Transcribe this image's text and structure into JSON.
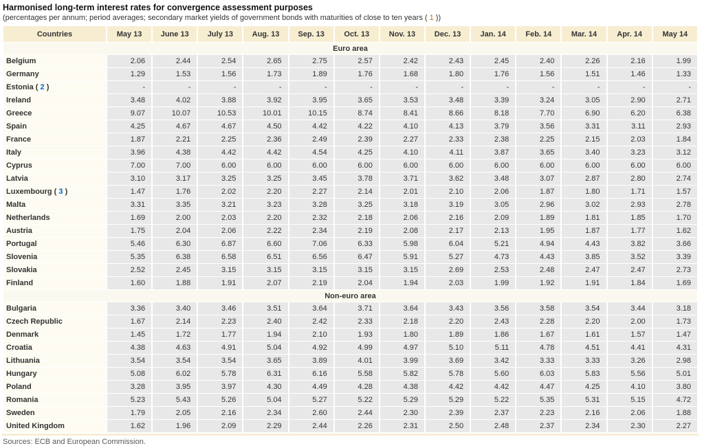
{
  "title": "Harmonised long-term interest rates for convergence assessment purposes",
  "subtitle": {
    "prefix": "(percentages per annum; period averages; secondary market yields of government bonds with maturities of close to ten years ( ",
    "footnote": "1",
    "suffix": " ))"
  },
  "colors": {
    "header_bg": "#f7eed2",
    "value_cell_bg": "#e8e8e8",
    "country_cell_bg": "#fdfbf2",
    "footnote_link_blue": "#0066cc",
    "footnote_orange": "#cc6600"
  },
  "columns": [
    "Countries",
    "May 13",
    "June 13",
    "July 13",
    "Aug. 13",
    "Sep. 13",
    "Oct. 13",
    "Nov. 13",
    "Dec. 13",
    "Jan. 14",
    "Feb. 14",
    "Mar. 14",
    "Apr. 14",
    "May 14"
  ],
  "sections": [
    {
      "label": "Euro area",
      "rows": [
        {
          "country": "Belgium",
          "footnote": null,
          "values": [
            "2.06",
            "2.44",
            "2.54",
            "2.65",
            "2.75",
            "2.57",
            "2.42",
            "2.43",
            "2.45",
            "2.40",
            "2.26",
            "2.16",
            "1.99"
          ]
        },
        {
          "country": "Germany",
          "footnote": null,
          "values": [
            "1.29",
            "1.53",
            "1.56",
            "1.73",
            "1.89",
            "1.76",
            "1.68",
            "1.80",
            "1.76",
            "1.56",
            "1.51",
            "1.46",
            "1.33"
          ]
        },
        {
          "country": "Estonia",
          "footnote": "2",
          "values": [
            "-",
            "-",
            "-",
            "-",
            "-",
            "-",
            "-",
            "-",
            "-",
            "-",
            "-",
            "-",
            "-"
          ]
        },
        {
          "country": "Ireland",
          "footnote": null,
          "values": [
            "3.48",
            "4.02",
            "3.88",
            "3.92",
            "3.95",
            "3.65",
            "3.53",
            "3.48",
            "3.39",
            "3.24",
            "3.05",
            "2.90",
            "2.71"
          ]
        },
        {
          "country": "Greece",
          "footnote": null,
          "values": [
            "9.07",
            "10.07",
            "10.53",
            "10.01",
            "10.15",
            "8.74",
            "8.41",
            "8.66",
            "8.18",
            "7.70",
            "6.90",
            "6.20",
            "6.38"
          ]
        },
        {
          "country": "Spain",
          "footnote": null,
          "values": [
            "4.25",
            "4.67",
            "4.67",
            "4.50",
            "4.42",
            "4.22",
            "4.10",
            "4.13",
            "3.79",
            "3.56",
            "3.31",
            "3.11",
            "2.93"
          ]
        },
        {
          "country": "France",
          "footnote": null,
          "values": [
            "1.87",
            "2.21",
            "2.25",
            "2.36",
            "2.49",
            "2.39",
            "2.27",
            "2.33",
            "2.38",
            "2.25",
            "2.15",
            "2.03",
            "1.84"
          ]
        },
        {
          "country": "Italy",
          "footnote": null,
          "values": [
            "3.96",
            "4.38",
            "4.42",
            "4.42",
            "4.54",
            "4.25",
            "4.10",
            "4.11",
            "3.87",
            "3.65",
            "3.40",
            "3.23",
            "3.12"
          ]
        },
        {
          "country": "Cyprus",
          "footnote": null,
          "values": [
            "7.00",
            "7.00",
            "6.00",
            "6.00",
            "6.00",
            "6.00",
            "6.00",
            "6.00",
            "6.00",
            "6.00",
            "6.00",
            "6.00",
            "6.00"
          ]
        },
        {
          "country": "Latvia",
          "footnote": null,
          "values": [
            "3.10",
            "3.17",
            "3.25",
            "3.25",
            "3.45",
            "3.78",
            "3.71",
            "3.62",
            "3.48",
            "3.07",
            "2.87",
            "2.80",
            "2.74"
          ]
        },
        {
          "country": "Luxembourg",
          "footnote": "3",
          "values": [
            "1.47",
            "1.76",
            "2.02",
            "2.20",
            "2.27",
            "2.14",
            "2.01",
            "2.10",
            "2.06",
            "1.87",
            "1.80",
            "1.71",
            "1.57"
          ]
        },
        {
          "country": "Malta",
          "footnote": null,
          "values": [
            "3.31",
            "3.35",
            "3.21",
            "3.23",
            "3.28",
            "3.25",
            "3.18",
            "3.19",
            "3.05",
            "2.96",
            "3.02",
            "2.93",
            "2.78"
          ]
        },
        {
          "country": "Netherlands",
          "footnote": null,
          "values": [
            "1.69",
            "2.00",
            "2.03",
            "2.20",
            "2.32",
            "2.18",
            "2.06",
            "2.16",
            "2.09",
            "1.89",
            "1.81",
            "1.85",
            "1.70"
          ]
        },
        {
          "country": "Austria",
          "footnote": null,
          "values": [
            "1.75",
            "2.04",
            "2.06",
            "2.22",
            "2.34",
            "2.19",
            "2.08",
            "2.17",
            "2.13",
            "1.95",
            "1.87",
            "1.77",
            "1.62"
          ]
        },
        {
          "country": "Portugal",
          "footnote": null,
          "values": [
            "5.46",
            "6.30",
            "6.87",
            "6.60",
            "7.06",
            "6.33",
            "5.98",
            "6.04",
            "5.21",
            "4.94",
            "4.43",
            "3.82",
            "3.66"
          ]
        },
        {
          "country": "Slovenia",
          "footnote": null,
          "values": [
            "5.35",
            "6.38",
            "6.58",
            "6.51",
            "6.56",
            "6.47",
            "5.91",
            "5.27",
            "4.73",
            "4.43",
            "3.85",
            "3.52",
            "3.39"
          ]
        },
        {
          "country": "Slovakia",
          "footnote": null,
          "values": [
            "2.52",
            "2.45",
            "3.15",
            "3.15",
            "3.15",
            "3.15",
            "3.15",
            "2.69",
            "2.53",
            "2.48",
            "2.47",
            "2.47",
            "2.73"
          ]
        },
        {
          "country": "Finland",
          "footnote": null,
          "values": [
            "1.60",
            "1.88",
            "1.91",
            "2.07",
            "2.19",
            "2.04",
            "1.94",
            "2.03",
            "1.99",
            "1.92",
            "1.91",
            "1.84",
            "1.69"
          ]
        }
      ]
    },
    {
      "label": "Non-euro area",
      "rows": [
        {
          "country": "Bulgaria",
          "footnote": null,
          "values": [
            "3.36",
            "3.40",
            "3.46",
            "3.51",
            "3.64",
            "3.71",
            "3.64",
            "3.43",
            "3.56",
            "3.58",
            "3.54",
            "3.44",
            "3.18"
          ]
        },
        {
          "country": "Czech Republic",
          "footnote": null,
          "values": [
            "1.67",
            "2.14",
            "2.23",
            "2.40",
            "2.42",
            "2.33",
            "2.18",
            "2.20",
            "2.43",
            "2.28",
            "2.20",
            "2.00",
            "1.73"
          ]
        },
        {
          "country": "Denmark",
          "footnote": null,
          "values": [
            "1.45",
            "1.72",
            "1.77",
            "1.94",
            "2.10",
            "1.93",
            "1.80",
            "1.89",
            "1.86",
            "1.67",
            "1.61",
            "1.57",
            "1.47"
          ]
        },
        {
          "country": "Croatia",
          "footnote": null,
          "values": [
            "4.38",
            "4.63",
            "4.91",
            "5.04",
            "4.92",
            "4.99",
            "4.97",
            "5.10",
            "5.11",
            "4.78",
            "4.51",
            "4.41",
            "4.31"
          ]
        },
        {
          "country": "Lithuania",
          "footnote": null,
          "values": [
            "3.54",
            "3.54",
            "3.54",
            "3.65",
            "3.89",
            "4.01",
            "3.99",
            "3.69",
            "3.42",
            "3.33",
            "3.33",
            "3.26",
            "2.98"
          ]
        },
        {
          "country": "Hungary",
          "footnote": null,
          "values": [
            "5.08",
            "6.02",
            "5.78",
            "6.31",
            "6.16",
            "5.58",
            "5.82",
            "5.78",
            "5.60",
            "6.03",
            "5.83",
            "5.56",
            "5.01"
          ]
        },
        {
          "country": "Poland",
          "footnote": null,
          "values": [
            "3.28",
            "3.95",
            "3.97",
            "4.30",
            "4.49",
            "4.28",
            "4.38",
            "4.42",
            "4.42",
            "4.47",
            "4.25",
            "4.10",
            "3.80"
          ]
        },
        {
          "country": "Romania",
          "footnote": null,
          "values": [
            "5.23",
            "5.43",
            "5.26",
            "5.04",
            "5.27",
            "5.22",
            "5.29",
            "5.29",
            "5.22",
            "5.35",
            "5.31",
            "5.15",
            "4.72"
          ]
        },
        {
          "country": "Sweden",
          "footnote": null,
          "values": [
            "1.79",
            "2.05",
            "2.16",
            "2.34",
            "2.60",
            "2.44",
            "2.30",
            "2.39",
            "2.37",
            "2.23",
            "2.16",
            "2.06",
            "1.88"
          ]
        },
        {
          "country": "United Kingdom",
          "footnote": null,
          "values": [
            "1.62",
            "1.96",
            "2.09",
            "2.29",
            "2.44",
            "2.26",
            "2.31",
            "2.50",
            "2.48",
            "2.37",
            "2.34",
            "2.30",
            "2.27"
          ]
        }
      ]
    }
  ],
  "footer": "Sources: ECB and European Commission."
}
